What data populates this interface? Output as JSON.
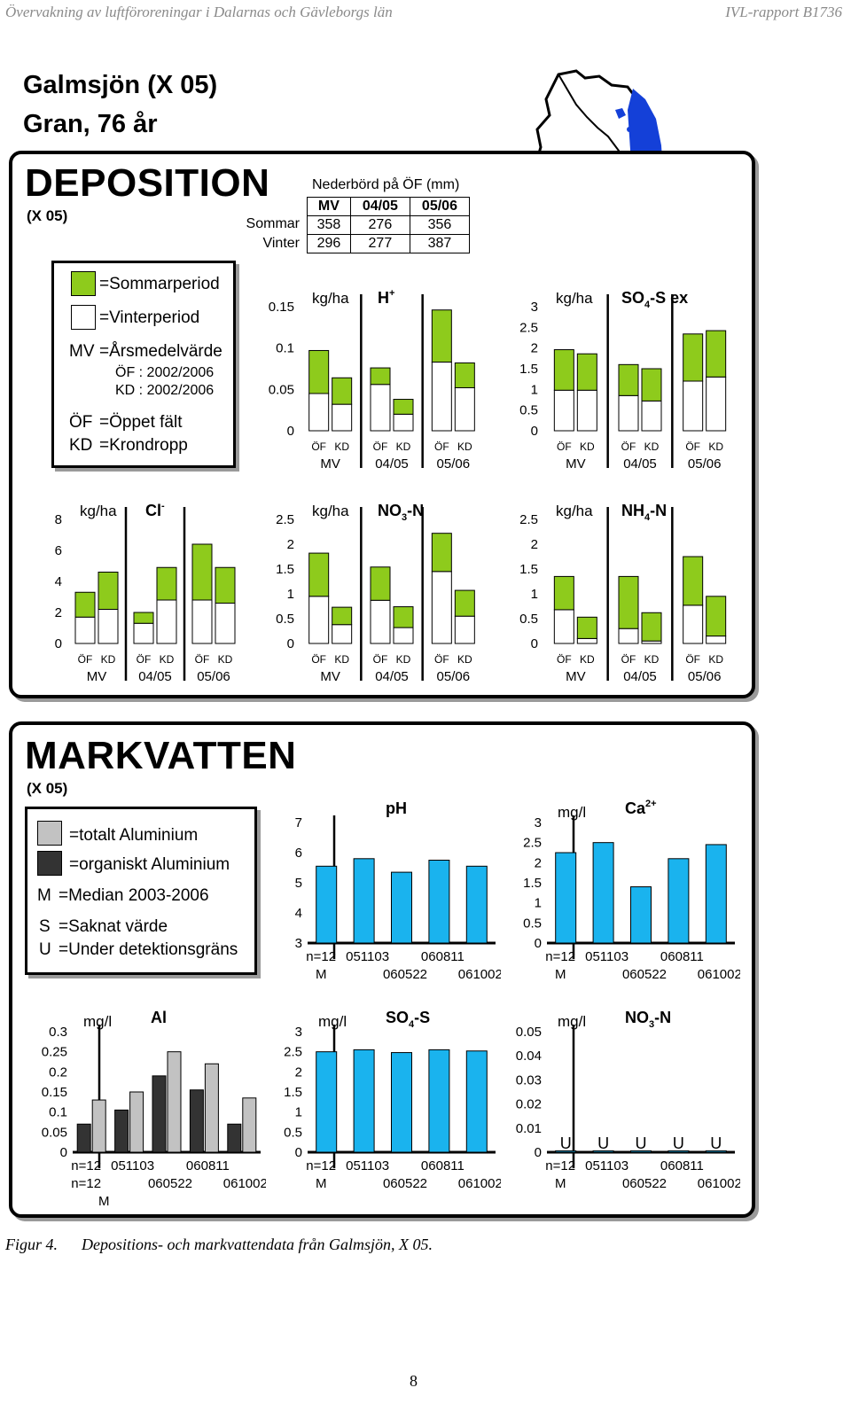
{
  "header": {
    "left": "Övervakning av luftföroreningar i Dalarnas och Gävleborgs län",
    "right": "IVL-rapport B1736"
  },
  "site": {
    "line1": "Galmsjön (X 05)",
    "line2": "Gran, 76 år"
  },
  "deposition": {
    "title": "DEPOSITION",
    "code": "(X 05)",
    "precip": {
      "title": "Nederbörd på ÖF (mm)",
      "headers": [
        "MV",
        "04/05",
        "05/06"
      ],
      "rows": [
        {
          "label": "Sommar",
          "values": [
            "358",
            "276",
            "356"
          ]
        },
        {
          "label": "Vinter",
          "values": [
            "296",
            "277",
            "387"
          ]
        }
      ]
    },
    "legend": {
      "summer": "=Sommarperiod",
      "winter": "=Vinterperiod",
      "mv_key": "MV",
      "mv_text": "=Årsmedelvärde",
      "of_period": "ÖF : 2002/2006",
      "kd_period": "KD : 2002/2006",
      "of_key": "ÖF",
      "of_text": "=Öppet fält",
      "kd_key": "KD",
      "kd_text": "=Krondropp"
    },
    "colors": {
      "summer": "#8ecb1c",
      "winter": "#ffffff"
    }
  },
  "markvatten": {
    "title": "MARKVATTEN",
    "code": "(X 05)",
    "legend": {
      "total": "=totalt Aluminium",
      "organic": "=organiskt Aluminium",
      "m_key": "M",
      "m_text": "=Median 2003-2006",
      "s_key": "S",
      "s_text": "=Saknat värde",
      "u_key": "U",
      "u_text": "=Under detektionsgräns"
    },
    "colors": {
      "bar": "#1ab3ee",
      "al_total": "#c2c2c2",
      "al_organic": "#333333"
    }
  },
  "chart_data": [
    {
      "id": "H",
      "type": "bar",
      "stacked": true,
      "title": "H",
      "title_sup": "+",
      "unit": "kg/ha",
      "yticks": [
        "0.15",
        "0.1",
        "0.05",
        "0"
      ],
      "ylim": [
        0,
        0.15
      ],
      "categories": [
        "ÖF",
        "KD",
        "ÖF",
        "KD",
        "ÖF",
        "KD"
      ],
      "groups": [
        "MV",
        "04/05",
        "05/06"
      ],
      "series": [
        {
          "name": "Vinterperiod",
          "values": [
            0.045,
            0.032,
            0.056,
            0.02,
            0.083,
            0.052
          ]
        },
        {
          "name": "Sommarperiod",
          "values": [
            0.052,
            0.032,
            0.02,
            0.018,
            0.063,
            0.03
          ]
        }
      ]
    },
    {
      "id": "SO4",
      "type": "bar",
      "stacked": true,
      "title": "SO",
      "title_sub": "4",
      "title_rest": "-S ex",
      "unit": "kg/ha",
      "yticks": [
        "3",
        "2.5",
        "2",
        "1.5",
        "1",
        "0.5",
        "0"
      ],
      "ylim": [
        0,
        3
      ],
      "categories": [
        "ÖF",
        "KD",
        "ÖF",
        "KD",
        "ÖF",
        "KD"
      ],
      "groups": [
        "MV",
        "04/05",
        "05/06"
      ],
      "series": [
        {
          "name": "Vinterperiod",
          "values": [
            0.98,
            0.98,
            0.85,
            0.72,
            1.2,
            1.3
          ]
        },
        {
          "name": "Sommarperiod",
          "values": [
            0.98,
            0.88,
            0.75,
            0.78,
            1.14,
            1.12
          ]
        }
      ]
    },
    {
      "id": "Cl",
      "type": "bar",
      "stacked": true,
      "title": "Cl",
      "title_sup": "-",
      "unit": "kg/ha",
      "yticks": [
        "8",
        "6",
        "4",
        "2",
        "0"
      ],
      "ylim": [
        0,
        8
      ],
      "categories": [
        "ÖF",
        "KD",
        "ÖF",
        "KD",
        "ÖF",
        "KD"
      ],
      "groups": [
        "MV",
        "04/05",
        "05/06"
      ],
      "series": [
        {
          "name": "Vinterperiod",
          "values": [
            1.7,
            2.2,
            1.3,
            2.8,
            2.8,
            2.6
          ]
        },
        {
          "name": "Sommarperiod",
          "values": [
            1.6,
            2.4,
            0.7,
            2.1,
            3.6,
            2.3
          ]
        }
      ]
    },
    {
      "id": "NO3",
      "type": "bar",
      "stacked": true,
      "title": "NO",
      "title_sub": "3",
      "title_rest": "-N",
      "unit": "kg/ha",
      "yticks": [
        "2.5",
        "2",
        "1.5",
        "1",
        "0.5",
        "0"
      ],
      "ylim": [
        0,
        2.5
      ],
      "categories": [
        "ÖF",
        "KD",
        "ÖF",
        "KD",
        "ÖF",
        "KD"
      ],
      "groups": [
        "MV",
        "04/05",
        "05/06"
      ],
      "series": [
        {
          "name": "Vinterperiod",
          "values": [
            0.95,
            0.38,
            0.87,
            0.32,
            1.45,
            0.55
          ]
        },
        {
          "name": "Sommarperiod",
          "values": [
            0.87,
            0.35,
            0.67,
            0.42,
            0.77,
            0.52
          ]
        }
      ]
    },
    {
      "id": "NH4",
      "type": "bar",
      "stacked": true,
      "title": "NH",
      "title_sub": "4",
      "title_rest": "-N",
      "unit": "kg/ha",
      "yticks": [
        "2.5",
        "2",
        "1.5",
        "1",
        "0.5",
        "0"
      ],
      "ylim": [
        0,
        2.5
      ],
      "categories": [
        "ÖF",
        "KD",
        "ÖF",
        "KD",
        "ÖF",
        "KD"
      ],
      "groups": [
        "MV",
        "04/05",
        "05/06"
      ],
      "series": [
        {
          "name": "Vinterperiod",
          "values": [
            0.68,
            0.1,
            0.3,
            0.05,
            0.77,
            0.15
          ]
        },
        {
          "name": "Sommarperiod",
          "values": [
            0.67,
            0.43,
            1.05,
            0.57,
            0.98,
            0.8
          ]
        }
      ]
    },
    {
      "id": "pH",
      "type": "bar",
      "title": "pH",
      "unit": "",
      "yticks": [
        "7",
        "6",
        "5",
        "4",
        "3"
      ],
      "ylim": [
        3,
        7
      ],
      "categories": [
        "n=12",
        "051103",
        "060522",
        "060811",
        "061002"
      ],
      "xlab_top": [
        "n=12",
        "051103",
        "060811"
      ],
      "xlab_bottom": [
        "M",
        "060522",
        "061002"
      ],
      "values": [
        5.55,
        5.8,
        5.35,
        5.75,
        5.55
      ]
    },
    {
      "id": "Ca",
      "type": "bar",
      "title": "Ca",
      "title_sup": "2+",
      "unit": "mg/l",
      "yticks": [
        "3",
        "2.5",
        "2",
        "1.5",
        "1",
        "0.5",
        "0"
      ],
      "ylim": [
        0,
        3
      ],
      "categories": [
        "n=12",
        "051103",
        "060522",
        "060811",
        "061002"
      ],
      "xlab_top": [
        "n=12",
        "051103",
        "060811"
      ],
      "xlab_bottom": [
        "M",
        "060522",
        "061002"
      ],
      "values": [
        2.25,
        2.5,
        1.4,
        2.1,
        2.45
      ]
    },
    {
      "id": "Al",
      "type": "bar",
      "title": "Al",
      "unit": "mg/l",
      "yticks": [
        "0.3",
        "0.25",
        "0.2",
        "0.15",
        "0.1",
        "0.05",
        "0"
      ],
      "ylim": [
        0,
        0.3
      ],
      "categories": [
        "n=12",
        "051103",
        "060522",
        "060811",
        "061002"
      ],
      "xlab_top": [
        "n=12",
        "051103",
        "060811"
      ],
      "xlab_bottom": [
        "n=12",
        "060522",
        "061002"
      ],
      "xlab_bottom2": "M",
      "series": [
        {
          "name": "organiskt Aluminium",
          "values": [
            0.07,
            0.105,
            0.19,
            0.155,
            0.07
          ]
        },
        {
          "name": "totalt Aluminium",
          "values": [
            0.13,
            0.15,
            0.25,
            0.22,
            0.135
          ]
        }
      ]
    },
    {
      "id": "SO4S",
      "type": "bar",
      "title": "SO",
      "title_sub": "4",
      "title_rest": "-S",
      "unit": "mg/l",
      "yticks": [
        "3",
        "2.5",
        "2",
        "1.5",
        "1",
        "0.5",
        "0"
      ],
      "ylim": [
        0,
        3
      ],
      "categories": [
        "n=12",
        "051103",
        "060522",
        "060811",
        "061002"
      ],
      "xlab_top": [
        "n=12",
        "051103",
        "060811"
      ],
      "xlab_bottom": [
        "M",
        "060522",
        "061002"
      ],
      "values": [
        2.5,
        2.55,
        2.48,
        2.55,
        2.52
      ]
    },
    {
      "id": "NO3N",
      "type": "bar",
      "title": "NO",
      "title_sub": "3",
      "title_rest": "-N",
      "unit": "mg/l",
      "yticks": [
        "0.05",
        "0.04",
        "0.03",
        "0.02",
        "0.01",
        "0"
      ],
      "ylim": [
        0,
        0.05
      ],
      "categories": [
        "n=12",
        "051103",
        "060522",
        "060811",
        "061002"
      ],
      "xlab_top": [
        "n=12",
        "051103",
        "060811"
      ],
      "xlab_bottom": [
        "M",
        "060522",
        "061002"
      ],
      "values": [
        0.0006,
        0.0006,
        0.0006,
        0.0006,
        0.0006
      ],
      "bar_labels": [
        "U",
        "U",
        "U",
        "U",
        "U"
      ]
    }
  ],
  "caption": {
    "label": "Figur 4.",
    "text": "Depositions- och markvattendata från Galmsjön, X 05."
  },
  "page_number": "8"
}
